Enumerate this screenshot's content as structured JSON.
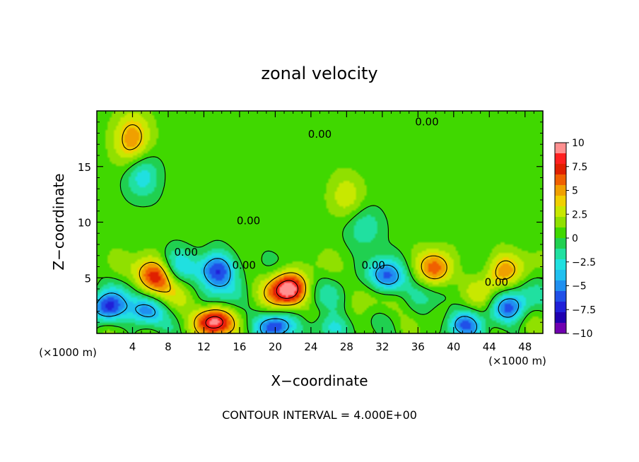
{
  "chart_data": {
    "type": "heatmap",
    "title": "zonal velocity",
    "xlabel": "X−coordinate",
    "ylabel": "Z−coordinate",
    "x_unit_left": "(×1000 m)",
    "x_unit_right": "(×1000 m)",
    "footer": "CONTOUR INTERVAL = 4.000E+00",
    "xlim": [
      0,
      50
    ],
    "ylim": [
      0,
      20
    ],
    "x_ticks": [
      4,
      8,
      12,
      16,
      20,
      24,
      28,
      32,
      36,
      40,
      44,
      48
    ],
    "y_ticks": [
      5,
      10,
      15
    ],
    "colorbar": {
      "min": -10,
      "max": 10,
      "ticks": [
        "10",
        "7.5",
        "5",
        "2.5",
        "0",
        "−2.5",
        "−5",
        "−7.5",
        "−10"
      ],
      "colors": [
        "#ff9090",
        "#ff2020",
        "#e02000",
        "#f06000",
        "#f0a000",
        "#f0d000",
        "#c8e800",
        "#90e000",
        "#40d800",
        "#20d050",
        "#20e0a0",
        "#20e0e0",
        "#20c0f0",
        "#2090f0",
        "#2050e8",
        "#2020d8",
        "#2000b0",
        "#7000b0"
      ]
    },
    "contour_labels": [
      {
        "text": "0.00",
        "x": 25.0,
        "y": 17.6
      },
      {
        "text": "0.00",
        "x": 37.0,
        "y": 18.7
      },
      {
        "text": "0.00",
        "x": 17.0,
        "y": 9.8
      },
      {
        "text": "0.00",
        "x": 10.0,
        "y": 7.0
      },
      {
        "text": "0.00",
        "x": 16.5,
        "y": 5.8
      },
      {
        "text": "0.00",
        "x": 31.0,
        "y": 5.8
      },
      {
        "text": "0.00",
        "x": 44.8,
        "y": 4.3
      }
    ],
    "features": [
      {
        "kind": "max",
        "x": 6.5,
        "y": 5.2,
        "value": 7.5
      },
      {
        "kind": "max",
        "x": 21.5,
        "y": 4.0,
        "value": 9.0
      },
      {
        "kind": "max",
        "x": 13.0,
        "y": 1.0,
        "value": 9.0
      },
      {
        "kind": "max",
        "x": 4.0,
        "y": 17.3,
        "value": 5.0
      },
      {
        "kind": "max",
        "x": 38.0,
        "y": 5.8,
        "value": 5.0
      },
      {
        "kind": "max",
        "x": 45.5,
        "y": 5.6,
        "value": 4.5
      },
      {
        "kind": "max",
        "x": 28.0,
        "y": 12.3,
        "value": 2.5
      },
      {
        "kind": "min",
        "x": 13.5,
        "y": 5.7,
        "value": -8.0
      },
      {
        "kind": "min",
        "x": 32.5,
        "y": 5.0,
        "value": -7.0
      },
      {
        "kind": "min",
        "x": 5.0,
        "y": 14.3,
        "value": -4.0
      },
      {
        "kind": "min",
        "x": 1.0,
        "y": 2.3,
        "value": -7.0
      },
      {
        "kind": "min",
        "x": 5.5,
        "y": 2.0,
        "value": -6.0
      },
      {
        "kind": "min",
        "x": 20.0,
        "y": 0.6,
        "value": -7.0
      },
      {
        "kind": "min",
        "x": 46.0,
        "y": 2.3,
        "value": -6.0
      },
      {
        "kind": "min",
        "x": 41.0,
        "y": 0.7,
        "value": -6.0
      },
      {
        "kind": "min",
        "x": 26.0,
        "y": 0.5,
        "value": -4.0
      },
      {
        "kind": "min",
        "x": 30.0,
        "y": 9.5,
        "value": -3.0
      },
      {
        "kind": "min",
        "x": 9.0,
        "y": 6.0,
        "value": -3.5
      }
    ]
  }
}
